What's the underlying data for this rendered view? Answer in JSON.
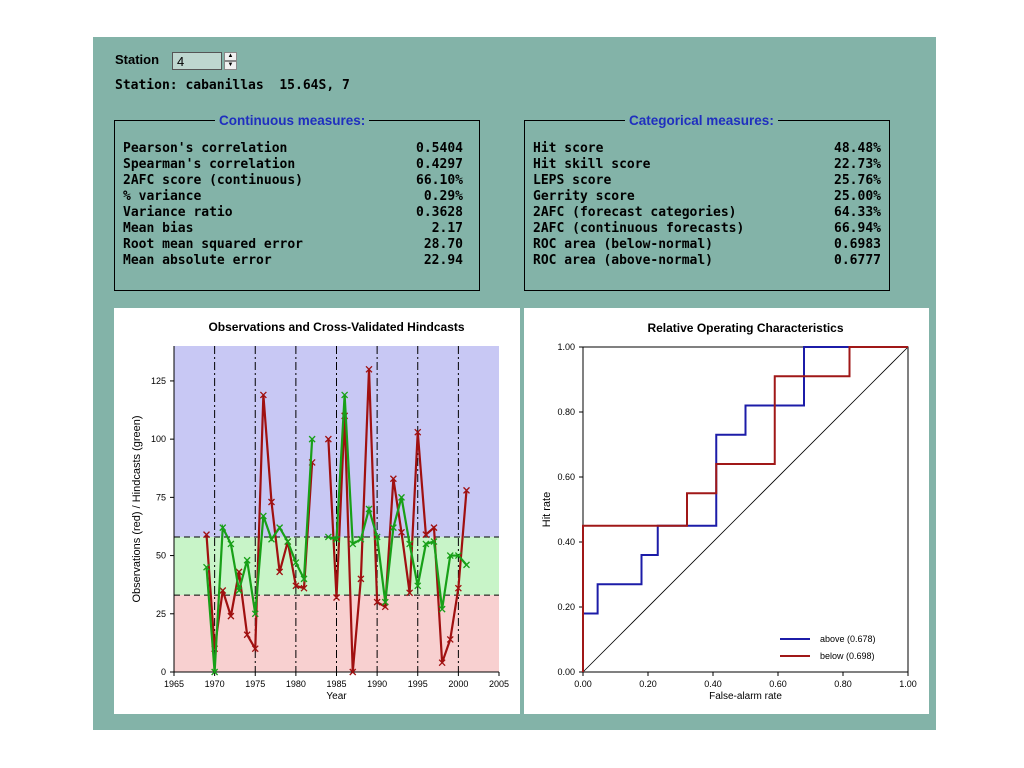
{
  "station": {
    "label": "Station",
    "value": "4",
    "info": "Station: cabanillas  15.64S, 7"
  },
  "continuous": {
    "title": "Continuous measures:",
    "rows": [
      {
        "name": "Pearson's correlation",
        "value": "0.5404"
      },
      {
        "name": "Spearman's correlation",
        "value": "0.4297"
      },
      {
        "name": "2AFC score (continuous)",
        "value": "66.10%"
      },
      {
        "name": "% variance",
        "value": "0.29%"
      },
      {
        "name": "Variance ratio",
        "value": "0.3628"
      },
      {
        "name": "Mean bias",
        "value": "2.17"
      },
      {
        "name": "Root mean squared error",
        "value": "28.70"
      },
      {
        "name": "Mean absolute error",
        "value": "22.94"
      }
    ]
  },
  "categorical": {
    "title": "Categorical measures:",
    "rows": [
      {
        "name": "Hit score",
        "value": "48.48%"
      },
      {
        "name": "Hit skill score",
        "value": "22.73%"
      },
      {
        "name": "LEPS score",
        "value": "25.76%"
      },
      {
        "name": "Gerrity score",
        "value": "25.00%"
      },
      {
        "name": "2AFC (forecast categories)",
        "value": "64.33%"
      },
      {
        "name": "2AFC (continuous forecasts)",
        "value": "66.94%"
      },
      {
        "name": "ROC area (below-normal)",
        "value": "0.6983"
      },
      {
        "name": "ROC area (above-normal)",
        "value": "0.6777"
      }
    ]
  },
  "chart_data": [
    {
      "type": "line",
      "title": "Observations and Cross-Validated Hindcasts",
      "xlabel": "Year",
      "ylabel": "Observations (red) / Hindcasts (green)",
      "xlim": [
        1965,
        2005
      ],
      "ylim": [
        0,
        140
      ],
      "xticks": [
        "1965",
        "1970",
        "1975",
        "1980",
        "1985",
        "1990",
        "1995",
        "2000",
        "2005"
      ],
      "yticks": [
        "0",
        "25",
        "50",
        "75",
        "100",
        "125"
      ],
      "x": [
        1969,
        1970,
        1971,
        1972,
        1973,
        1974,
        1975,
        1976,
        1977,
        1978,
        1979,
        1980,
        1981,
        1982,
        1983,
        1984,
        1985,
        1986,
        1987,
        1988,
        1989,
        1990,
        1991,
        1992,
        1993,
        1994,
        1995,
        1996,
        1997,
        1998,
        1999,
        2000,
        2001,
        2002
      ],
      "tercile_thresholds": [
        33,
        58
      ],
      "decade_lines": [
        1970,
        1975,
        1980,
        1985,
        1990,
        1995,
        2000
      ],
      "region_colors": {
        "above": "#c8c8f4",
        "normal": "#c8f4c8",
        "below": "#f8d0d0"
      },
      "series": [
        {
          "name": "Observations",
          "color": "#a01010",
          "values": [
            59,
            10,
            35,
            24,
            43,
            16,
            10,
            119,
            73,
            43,
            56,
            37,
            36,
            90,
            null,
            100,
            32,
            110,
            0,
            40,
            130,
            30,
            28,
            83,
            60,
            34,
            103,
            59,
            62,
            4,
            14,
            36,
            78,
            null
          ]
        },
        {
          "name": "Hindcasts",
          "color": "#18a018",
          "values": [
            45,
            0,
            62,
            55,
            35,
            48,
            25,
            67,
            57,
            62,
            56,
            47,
            40,
            100,
            null,
            58,
            57,
            119,
            55,
            57,
            70,
            58,
            30,
            62,
            75,
            55,
            37,
            55,
            56,
            27,
            50,
            50,
            46,
            null
          ]
        }
      ]
    },
    {
      "type": "line",
      "title": "Relative Operating Characteristics",
      "xlabel": "False-alarm rate",
      "ylabel": "Hit rate",
      "xlim": [
        0,
        1
      ],
      "ylim": [
        0,
        1
      ],
      "xticks": [
        "0.00",
        "0.20",
        "0.40",
        "0.60",
        "0.80",
        "1.00"
      ],
      "yticks": [
        "0.00",
        "0.20",
        "0.40",
        "0.60",
        "0.80",
        "1.00"
      ],
      "legend_position": "bottom-right",
      "series": [
        {
          "name": "above (0.678)",
          "color": "#1c1ca8",
          "x": [
            0,
            0,
            0.045,
            0.045,
            0.18,
            0.18,
            0.23,
            0.23,
            0.41,
            0.41,
            0.5,
            0.5,
            0.68,
            0.68,
            1
          ],
          "y": [
            0,
            0.18,
            0.18,
            0.27,
            0.27,
            0.36,
            0.36,
            0.45,
            0.45,
            0.73,
            0.73,
            0.82,
            0.82,
            1,
            1
          ]
        },
        {
          "name": "below (0.698)",
          "color": "#a01818",
          "x": [
            0,
            0,
            0.32,
            0.32,
            0.41,
            0.41,
            0.59,
            0.59,
            0.82,
            0.82,
            1
          ],
          "y": [
            0,
            0.45,
            0.45,
            0.55,
            0.55,
            0.64,
            0.64,
            0.91,
            0.91,
            1,
            1
          ]
        }
      ]
    }
  ]
}
